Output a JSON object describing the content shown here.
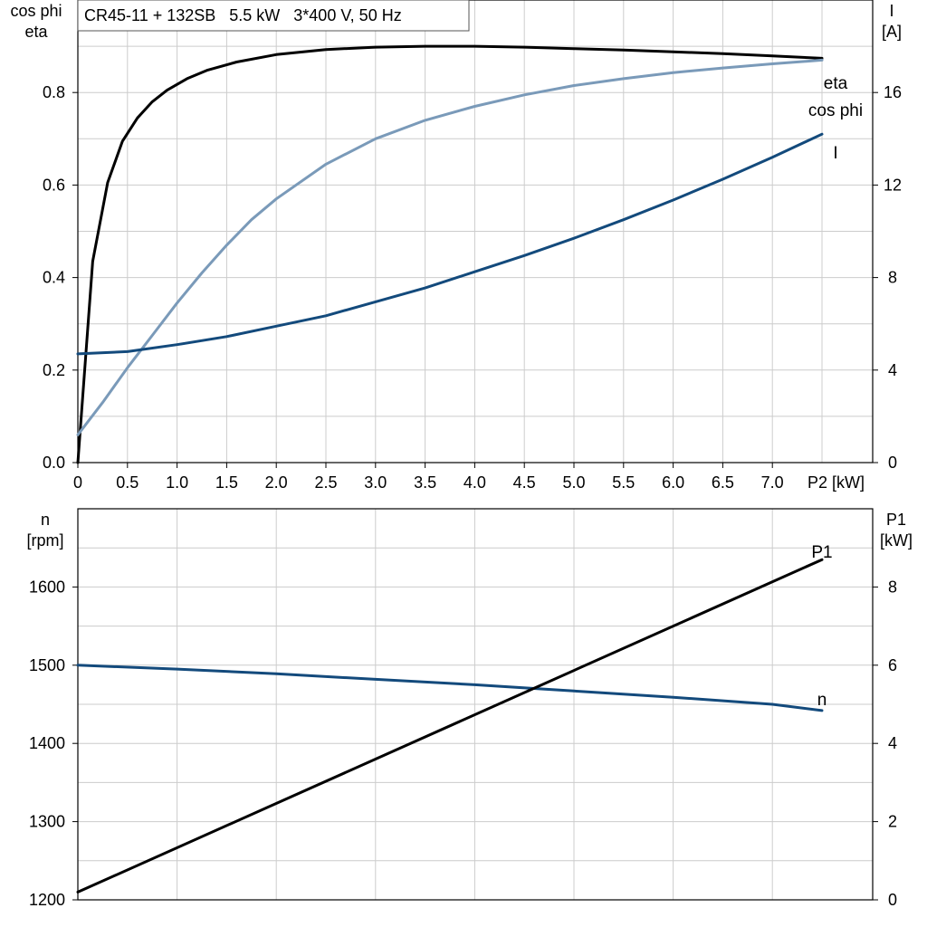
{
  "colors": {
    "eta": "#000000",
    "cos_phi": "#7a9ab9",
    "current": "#134a7c",
    "speed": "#134a7c",
    "p1": "#000000",
    "grid": "#cccccc"
  },
  "chart_data": [
    {
      "type": "line",
      "title": "CR45-11 + 132SB   5.5 kW   3*400 V, 50 Hz",
      "xlabel": "P2 [kW]",
      "ylabel_left": [
        "cos phi",
        "eta"
      ],
      "ylabel_right": [
        "I",
        "[A]"
      ],
      "xlim": [
        0,
        8
      ],
      "ylim_left": [
        0,
        1.0
      ],
      "ylim_right": [
        0,
        20
      ],
      "grid": true,
      "x_ticks": [
        "0",
        "0.5",
        "1.0",
        "1.5",
        "2.0",
        "2.5",
        "3.0",
        "3.5",
        "4.0",
        "4.5",
        "5.0",
        "5.5",
        "6.0",
        "6.5",
        "7.0"
      ],
      "y_ticks_left": [
        "0.0",
        "0.2",
        "0.4",
        "0.6",
        "0.8"
      ],
      "y_ticks_right": [
        "0",
        "4",
        "8",
        "12",
        "16"
      ],
      "series": [
        {
          "name": "eta",
          "axis": "left",
          "x": [
            0,
            0.15,
            0.3,
            0.45,
            0.6,
            0.75,
            0.9,
            1.1,
            1.3,
            1.6,
            2.0,
            2.5,
            3.0,
            3.5,
            4.0,
            4.5,
            5.0,
            5.5,
            6.0,
            6.5,
            7.0,
            7.5
          ],
          "y": [
            0.0,
            0.435,
            0.605,
            0.695,
            0.745,
            0.78,
            0.805,
            0.83,
            0.848,
            0.866,
            0.882,
            0.893,
            0.898,
            0.9,
            0.9,
            0.898,
            0.895,
            0.892,
            0.888,
            0.884,
            0.879,
            0.874
          ]
        },
        {
          "name": "cos phi",
          "axis": "left",
          "x": [
            0,
            0.25,
            0.5,
            0.75,
            1.0,
            1.25,
            1.5,
            1.75,
            2.0,
            2.5,
            3.0,
            3.5,
            4.0,
            4.5,
            5.0,
            5.5,
            6.0,
            6.5,
            7.0,
            7.5
          ],
          "y": [
            0.06,
            0.13,
            0.205,
            0.275,
            0.345,
            0.41,
            0.47,
            0.525,
            0.57,
            0.645,
            0.7,
            0.74,
            0.77,
            0.795,
            0.815,
            0.83,
            0.843,
            0.853,
            0.862,
            0.87
          ]
        },
        {
          "name": "I",
          "axis": "right",
          "x": [
            0,
            0.5,
            1.0,
            1.5,
            2.0,
            2.5,
            3.0,
            3.5,
            4.0,
            4.5,
            5.0,
            5.5,
            6.0,
            6.5,
            7.0,
            7.5
          ],
          "y": [
            4.7,
            4.8,
            5.1,
            5.45,
            5.9,
            6.35,
            6.95,
            7.55,
            8.25,
            8.95,
            9.7,
            10.5,
            11.35,
            12.25,
            13.2,
            14.2
          ]
        }
      ]
    },
    {
      "type": "line",
      "title": "",
      "xlabel": "",
      "ylabel_left": [
        "n",
        "[rpm]"
      ],
      "ylabel_right": [
        "P1",
        "[kW]"
      ],
      "xlim": [
        0,
        8
      ],
      "ylim_left": [
        1200,
        1700
      ],
      "ylim_right": [
        0,
        10
      ],
      "grid": true,
      "y_ticks_left": [
        "1200",
        "1300",
        "1400",
        "1500",
        "1600"
      ],
      "y_ticks_right": [
        "0",
        "2",
        "4",
        "6",
        "8"
      ],
      "series": [
        {
          "name": "n",
          "axis": "left",
          "x": [
            0,
            1,
            2,
            3,
            4,
            5,
            6,
            7,
            7.5
          ],
          "y": [
            1500,
            1495,
            1489,
            1482,
            1475,
            1467,
            1459,
            1450,
            1442
          ]
        },
        {
          "name": "P1",
          "axis": "right",
          "x": [
            0,
            7.5
          ],
          "y": [
            0.2,
            8.7
          ]
        }
      ]
    }
  ]
}
